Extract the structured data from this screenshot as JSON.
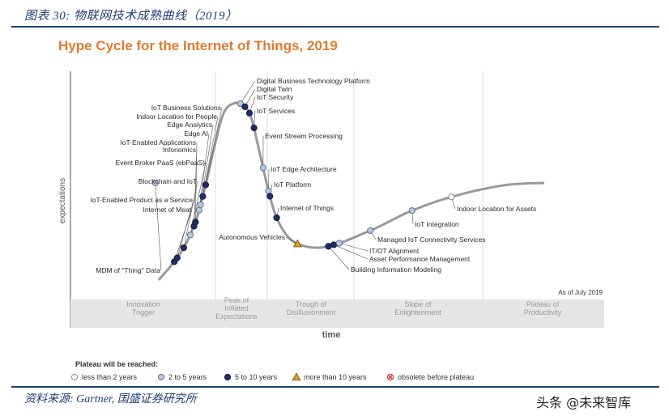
{
  "figure_caption": "图表 30: 物联网技术成熟曲线（2019）",
  "source_note": "资料来源: Gartner, 国盛证券研究所",
  "watermark": {
    "text": "头条 @未来智库"
  },
  "chart_data": {
    "type": "hype-cycle",
    "title": "Hype Cycle for the Internet of Things, 2019",
    "xlabel": "time",
    "ylabel": "expectations",
    "as_of": "As of July 2019",
    "phases": [
      {
        "id": "trigger",
        "label_lines": [
          "Innovation",
          "Trigger"
        ]
      },
      {
        "id": "peak",
        "label_lines": [
          "Peak of",
          "Inflated",
          "Expectations"
        ]
      },
      {
        "id": "trough",
        "label_lines": [
          "Trough of",
          "Disillusionment"
        ]
      },
      {
        "id": "slope",
        "label_lines": [
          "Slope of",
          "Enlightenment"
        ]
      },
      {
        "id": "plateau",
        "label_lines": [
          "Plateau of",
          "Productivity"
        ]
      }
    ],
    "legend_title": "Plateau will be reached:",
    "legend": [
      {
        "key": "lt2",
        "label": "less than 2 years",
        "marker": "circle",
        "fill": "#ffffff",
        "stroke": "#7a8fa6"
      },
      {
        "key": "2to5",
        "label": "2 to 5 years",
        "marker": "circle",
        "fill": "#b8c8da",
        "stroke": "#5c7794"
      },
      {
        "key": "5to10",
        "label": "5 to 10 years",
        "marker": "circle",
        "fill": "#1f2f66",
        "stroke": "#101a40"
      },
      {
        "key": "gt10",
        "label": "more than 10 years",
        "marker": "triangle",
        "fill": "#e2a42a",
        "stroke": "#8a5a00"
      },
      {
        "key": "obsolete",
        "label": "obsolete before plateau",
        "marker": "crossed-circle",
        "fill": "#ffffff",
        "stroke": "#d02020"
      }
    ],
    "technologies": [
      {
        "name": "MDM of \"Thing\" Data",
        "phase": "trigger",
        "t": 0.02,
        "key": "2to5"
      },
      {
        "name": "Internet of Meat",
        "phase": "trigger",
        "t": 0.28,
        "key": "5to10"
      },
      {
        "name": "IoT-Enabled Product as a Service",
        "phase": "trigger",
        "t": 0.32,
        "key": "5to10"
      },
      {
        "name": "Blockchain and IoT",
        "phase": "trigger",
        "t": 0.41,
        "key": "5to10"
      },
      {
        "name": "Event Broker PaaS (ebPaaS)",
        "phase": "trigger",
        "t": 0.5,
        "key": "2to5"
      },
      {
        "name": "Infonomics",
        "phase": "trigger",
        "t": 0.55,
        "key": "5to10"
      },
      {
        "name": "IoT-Enabled Applications",
        "phase": "trigger",
        "t": 0.57,
        "key": "5to10"
      },
      {
        "name": "Edge AI",
        "phase": "trigger",
        "t": 0.62,
        "key": "2to5"
      },
      {
        "name": "Edge Analytics",
        "phase": "trigger",
        "t": 0.64,
        "key": "2to5"
      },
      {
        "name": "Indoor Location for People",
        "phase": "trigger",
        "t": 0.67,
        "key": "5to10"
      },
      {
        "name": "IoT Business Solutions",
        "phase": "trigger",
        "t": 0.71,
        "key": "5to10"
      },
      {
        "name": "Digital Business Technology Platform",
        "phase": "peak",
        "t": 0.3,
        "key": "2to5"
      },
      {
        "name": "Digital Twin",
        "phase": "peak",
        "t": 0.4,
        "key": "5to10"
      },
      {
        "name": "IoT Security",
        "phase": "peak",
        "t": 0.5,
        "key": "5to10"
      },
      {
        "name": "IoT Services",
        "phase": "peak",
        "t": 0.6,
        "key": "5to10"
      },
      {
        "name": "Event Stream Processing",
        "phase": "peak",
        "t": 0.8,
        "key": "2to5"
      },
      {
        "name": "IoT Edge Architecture",
        "phase": "peak",
        "t": 0.92,
        "key": "2to5"
      },
      {
        "name": "IoT Platform",
        "phase": "peak",
        "t": 0.95,
        "key": "5to10"
      },
      {
        "name": "Internet of Things",
        "phase": "trough",
        "t": 0.05,
        "key": "5to10"
      },
      {
        "name": "Autonomous Vehicles",
        "phase": "trough",
        "t": 0.28,
        "key": "gt10"
      },
      {
        "name": "Building Information Modeling",
        "phase": "trough",
        "t": 0.62,
        "key": "5to10"
      },
      {
        "name": "Asset Performance Management",
        "phase": "trough",
        "t": 0.68,
        "key": "5to10"
      },
      {
        "name": "IT/OT Alignment",
        "phase": "trough",
        "t": 0.74,
        "key": "2to5"
      },
      {
        "name": "Managed IoT Connectivity Services",
        "phase": "slope",
        "t": 0.06,
        "key": "2to5"
      },
      {
        "name": "IoT Integration",
        "phase": "slope",
        "t": 0.4,
        "key": "2to5"
      },
      {
        "name": "Indoor Location for Assets",
        "phase": "slope",
        "t": 0.72,
        "key": "lt2"
      }
    ]
  }
}
